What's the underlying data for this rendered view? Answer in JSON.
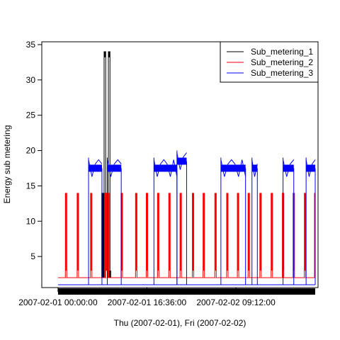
{
  "chart_data": {
    "type": "line",
    "xlabel": "Thu (2007-02-01), Fri (2007-02-02)",
    "ylabel": "Energy sub metering",
    "x_range": [
      "2007-02-01 00:00:00",
      "2007-02-02 23:59:00"
    ],
    "xlim_hours": [
      -2.5,
      48
    ],
    "ylim": [
      1,
      35
    ],
    "x_ticks": [
      {
        "label": "2007-02-01 00:00:00",
        "hour": 0
      },
      {
        "label": "2007-02-01 16:36:00",
        "hour": 16.6
      },
      {
        "label": "2007-02-02 09:12:00",
        "hour": 33.2
      }
    ],
    "y_ticks": [
      5,
      10,
      15,
      20,
      25,
      30,
      35
    ],
    "legend": {
      "position": "top-right",
      "entries": [
        {
          "name": "Sub_metering_1",
          "color": "#000000"
        },
        {
          "name": "Sub_metering_2",
          "color": "#ff0000"
        },
        {
          "name": "Sub_metering_3",
          "color": "#0000ff"
        }
      ]
    },
    "series": [
      {
        "name": "Sub_metering_1",
        "color": "#000000",
        "baseline": 2,
        "events": [
          {
            "start": 8.1,
            "end": 9.3,
            "level": 14
          },
          {
            "start": 8.6,
            "end": 8.9,
            "level": 34
          },
          {
            "start": 9.4,
            "end": 9.7,
            "level": 34
          },
          {
            "start": 8.3,
            "end": 9.9,
            "level": 3
          }
        ]
      },
      {
        "name": "Sub_metering_2",
        "color": "#ff0000",
        "baseline": 2,
        "events": [
          {
            "start": 1.3,
            "end": 1.7,
            "level": 14
          },
          {
            "start": 3.5,
            "end": 3.9,
            "level": 14
          },
          {
            "start": 6.0,
            "end": 6.4,
            "level": 14
          },
          {
            "start": 8.6,
            "end": 9.6,
            "level": 14
          },
          {
            "start": 11.7,
            "end": 12.1,
            "level": 14
          },
          {
            "start": 14.4,
            "end": 14.8,
            "level": 14
          },
          {
            "start": 16.4,
            "end": 16.8,
            "level": 14
          },
          {
            "start": 18.5,
            "end": 18.9,
            "level": 14
          },
          {
            "start": 20.6,
            "end": 21.0,
            "level": 14
          },
          {
            "start": 22.7,
            "end": 23.1,
            "level": 14
          },
          {
            "start": 25.0,
            "end": 25.4,
            "level": 14
          },
          {
            "start": 27.0,
            "end": 27.4,
            "level": 14
          },
          {
            "start": 29.2,
            "end": 29.6,
            "level": 14
          },
          {
            "start": 31.4,
            "end": 31.8,
            "level": 14
          },
          {
            "start": 33.4,
            "end": 33.8,
            "level": 14
          },
          {
            "start": 35.4,
            "end": 35.8,
            "level": 14
          },
          {
            "start": 37.6,
            "end": 38.0,
            "level": 14
          },
          {
            "start": 39.7,
            "end": 40.1,
            "level": 14
          },
          {
            "start": 41.8,
            "end": 42.2,
            "level": 14
          },
          {
            "start": 43.8,
            "end": 44.2,
            "level": 14
          },
          {
            "start": 45.9,
            "end": 46.3,
            "level": 14
          },
          {
            "start": 47.8,
            "end": 47.9,
            "level": 14
          }
        ]
      },
      {
        "name": "Sub_metering_3",
        "color": "#0000ff",
        "baseline": 1,
        "events": [
          {
            "start": 5.7,
            "end": 8.2,
            "level": 17.5,
            "noisy": true
          },
          {
            "start": 9.2,
            "end": 11.8,
            "level": 17.5,
            "noisy": true
          },
          {
            "start": 17.9,
            "end": 22.2,
            "level": 17.5,
            "noisy": true
          },
          {
            "start": 22.2,
            "end": 24.0,
            "level": 18.5,
            "noisy": true
          },
          {
            "start": 30.4,
            "end": 35.0,
            "level": 17.5,
            "noisy": true
          },
          {
            "start": 36.2,
            "end": 37.2,
            "level": 17.5,
            "noisy": true
          },
          {
            "start": 42.0,
            "end": 44.0,
            "level": 17.5,
            "noisy": true
          },
          {
            "start": 46.3,
            "end": 48.0,
            "level": 17.5,
            "noisy": true
          }
        ]
      }
    ],
    "grid": false
  }
}
